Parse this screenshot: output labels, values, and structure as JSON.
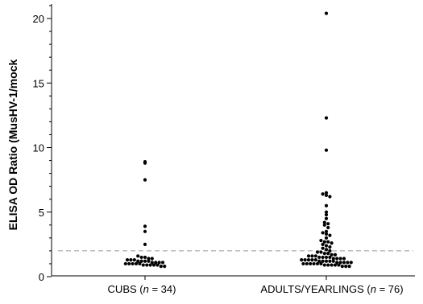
{
  "chart_data": {
    "type": "scatter",
    "title": "",
    "ylabel": "ELISA OD Ratio (MusHV-1/mock",
    "xlabel": "",
    "ylim": [
      0,
      21
    ],
    "yticks": [
      0,
      5,
      10,
      15,
      20
    ],
    "minor_ticks": true,
    "grid": false,
    "reference_line": {
      "y": 2.0,
      "style": "dashed",
      "color": "#999999"
    },
    "categories": [
      {
        "name": "CUBS",
        "n": "34",
        "label_prefix": "CUBS (",
        "label_n": "n",
        "label_suffix": " = 34)"
      },
      {
        "name": "ADULTS/YEARLINGS",
        "n": "76",
        "label_prefix": "ADULTS/YEARLINGS (",
        "label_n": "n",
        "label_suffix": " = 76)"
      }
    ],
    "series": [
      {
        "category": "CUBS",
        "values": [
          8.9,
          8.8,
          7.5,
          3.9,
          3.5,
          2.5,
          1.6,
          1.5,
          1.5,
          1.4,
          1.4,
          1.3,
          1.3,
          1.3,
          1.2,
          1.2,
          1.2,
          1.2,
          1.1,
          1.1,
          1.1,
          1.1,
          1.0,
          1.0,
          1.0,
          1.0,
          1.0,
          0.9,
          0.9,
          0.9,
          0.9,
          0.9,
          0.8,
          0.8
        ]
      },
      {
        "category": "ADULTS/YEARLINGS",
        "values": [
          20.4,
          12.3,
          9.8,
          6.5,
          6.4,
          6.3,
          6.2,
          5.5,
          5.0,
          4.8,
          4.5,
          4.2,
          4.1,
          4.0,
          3.8,
          3.5,
          3.4,
          3.3,
          3.2,
          3.0,
          2.8,
          2.7,
          2.7,
          2.6,
          2.5,
          2.4,
          2.3,
          2.2,
          2.1,
          2.0,
          1.9,
          1.9,
          1.8,
          1.8,
          1.7,
          1.7,
          1.6,
          1.6,
          1.6,
          1.5,
          1.5,
          1.5,
          1.5,
          1.4,
          1.4,
          1.4,
          1.4,
          1.3,
          1.3,
          1.3,
          1.3,
          1.3,
          1.2,
          1.2,
          1.2,
          1.2,
          1.2,
          1.1,
          1.1,
          1.1,
          1.1,
          1.1,
          1.0,
          1.0,
          1.0,
          1.0,
          1.0,
          1.0,
          0.9,
          0.9,
          0.9,
          0.9,
          0.9,
          0.8,
          0.8,
          0.8
        ]
      }
    ]
  }
}
